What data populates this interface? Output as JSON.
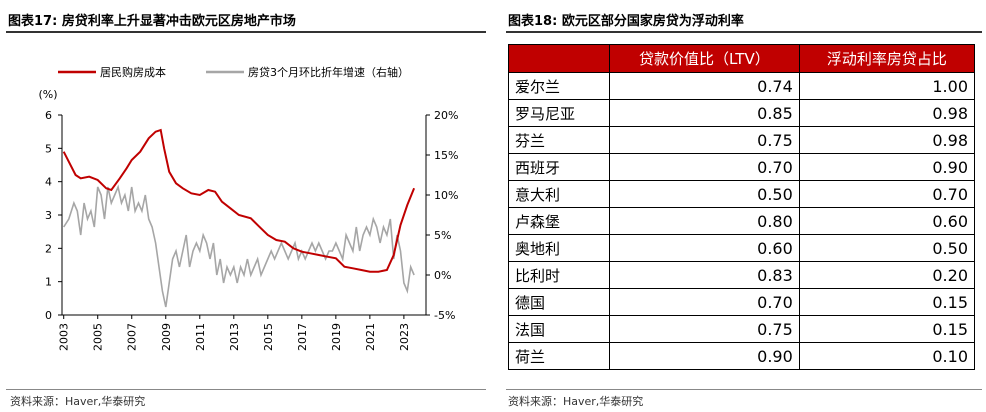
{
  "left": {
    "title": "图表17: 房贷利率上升显著冲击欧元区房地产市场",
    "source": "资料来源：Haver,华泰研究"
  },
  "right": {
    "title": "图表18: 欧元区部分国家房贷为浮动利率",
    "source": "资料来源：Haver,华泰研究"
  },
  "chart_data": [
    {
      "type": "line",
      "y_unit_label": "(%)",
      "legend_position": "top",
      "colors": {
        "series1": "#c00000",
        "series2": "#a6a6a6"
      },
      "x_ticks": [
        "2003",
        "2005",
        "2007",
        "2009",
        "2011",
        "2013",
        "2015",
        "2017",
        "2019",
        "2021",
        "2023"
      ],
      "y_left": {
        "min": 0,
        "max": 6,
        "ticks": [
          "0",
          "1",
          "2",
          "3",
          "4",
          "5",
          "6"
        ]
      },
      "y_right": {
        "min": -5,
        "max": 20,
        "ticks": [
          "-5%",
          "0%",
          "5%",
          "10%",
          "15%",
          "20%"
        ]
      },
      "series": [
        {
          "name": "居民购房成本",
          "axis": "left",
          "points": [
            [
              2003.0,
              4.9
            ],
            [
              2003.3,
              4.6
            ],
            [
              2003.7,
              4.2
            ],
            [
              2004.0,
              4.1
            ],
            [
              2004.5,
              4.15
            ],
            [
              2005.0,
              4.05
            ],
            [
              2005.5,
              3.8
            ],
            [
              2005.8,
              3.75
            ],
            [
              2006.3,
              4.1
            ],
            [
              2006.7,
              4.4
            ],
            [
              2007.0,
              4.65
            ],
            [
              2007.5,
              4.9
            ],
            [
              2008.0,
              5.3
            ],
            [
              2008.4,
              5.5
            ],
            [
              2008.7,
              5.55
            ],
            [
              2008.9,
              5.0
            ],
            [
              2009.2,
              4.3
            ],
            [
              2009.6,
              3.95
            ],
            [
              2010.0,
              3.8
            ],
            [
              2010.5,
              3.65
            ],
            [
              2011.0,
              3.6
            ],
            [
              2011.5,
              3.75
            ],
            [
              2011.9,
              3.7
            ],
            [
              2012.3,
              3.4
            ],
            [
              2012.8,
              3.2
            ],
            [
              2013.3,
              3.0
            ],
            [
              2014.0,
              2.9
            ],
            [
              2014.5,
              2.65
            ],
            [
              2015.0,
              2.4
            ],
            [
              2015.5,
              2.25
            ],
            [
              2016.0,
              2.2
            ],
            [
              2016.5,
              2.0
            ],
            [
              2017.0,
              1.9
            ],
            [
              2017.5,
              1.85
            ],
            [
              2018.0,
              1.8
            ],
            [
              2018.5,
              1.75
            ],
            [
              2019.0,
              1.7
            ],
            [
              2019.5,
              1.45
            ],
            [
              2020.0,
              1.4
            ],
            [
              2020.5,
              1.35
            ],
            [
              2021.0,
              1.3
            ],
            [
              2021.5,
              1.3
            ],
            [
              2022.0,
              1.35
            ],
            [
              2022.4,
              1.8
            ],
            [
              2022.8,
              2.7
            ],
            [
              2023.2,
              3.3
            ],
            [
              2023.6,
              3.8
            ]
          ]
        },
        {
          "name": "房贷3个月环比折年增速（右轴）",
          "axis": "right",
          "points": [
            [
              2003.0,
              6
            ],
            [
              2003.3,
              7
            ],
            [
              2003.6,
              9
            ],
            [
              2003.8,
              8
            ],
            [
              2004.0,
              5
            ],
            [
              2004.2,
              9
            ],
            [
              2004.4,
              7
            ],
            [
              2004.6,
              8
            ],
            [
              2004.8,
              6
            ],
            [
              2005.0,
              11
            ],
            [
              2005.2,
              10
            ],
            [
              2005.4,
              7
            ],
            [
              2005.6,
              11
            ],
            [
              2005.8,
              9
            ],
            [
              2006.0,
              10
            ],
            [
              2006.2,
              11
            ],
            [
              2006.4,
              9
            ],
            [
              2006.6,
              10
            ],
            [
              2006.8,
              8
            ],
            [
              2007.0,
              11
            ],
            [
              2007.2,
              8
            ],
            [
              2007.4,
              9
            ],
            [
              2007.6,
              8
            ],
            [
              2007.8,
              10
            ],
            [
              2008.0,
              7
            ],
            [
              2008.2,
              6
            ],
            [
              2008.4,
              4
            ],
            [
              2008.6,
              1
            ],
            [
              2008.8,
              -2
            ],
            [
              2009.0,
              -4
            ],
            [
              2009.2,
              -1
            ],
            [
              2009.4,
              2
            ],
            [
              2009.6,
              3
            ],
            [
              2009.8,
              1
            ],
            [
              2010.0,
              3
            ],
            [
              2010.2,
              5
            ],
            [
              2010.4,
              1
            ],
            [
              2010.6,
              3
            ],
            [
              2010.8,
              4
            ],
            [
              2011.0,
              3
            ],
            [
              2011.2,
              5
            ],
            [
              2011.4,
              4
            ],
            [
              2011.6,
              2
            ],
            [
              2011.8,
              4
            ],
            [
              2012.0,
              0
            ],
            [
              2012.2,
              2
            ],
            [
              2012.4,
              -1
            ],
            [
              2012.6,
              1
            ],
            [
              2012.8,
              0
            ],
            [
              2013.0,
              1
            ],
            [
              2013.2,
              -1
            ],
            [
              2013.4,
              1
            ],
            [
              2013.6,
              0
            ],
            [
              2013.8,
              2
            ],
            [
              2014.0,
              0
            ],
            [
              2014.2,
              1
            ],
            [
              2014.4,
              2
            ],
            [
              2014.6,
              0
            ],
            [
              2014.8,
              1
            ],
            [
              2015.0,
              2
            ],
            [
              2015.2,
              3
            ],
            [
              2015.4,
              2
            ],
            [
              2015.6,
              3
            ],
            [
              2015.8,
              4
            ],
            [
              2016.0,
              3
            ],
            [
              2016.2,
              2
            ],
            [
              2016.4,
              3
            ],
            [
              2016.6,
              4
            ],
            [
              2016.8,
              2
            ],
            [
              2017.0,
              3
            ],
            [
              2017.2,
              2
            ],
            [
              2017.4,
              3
            ],
            [
              2017.6,
              4
            ],
            [
              2017.8,
              3
            ],
            [
              2018.0,
              4
            ],
            [
              2018.2,
              3
            ],
            [
              2018.4,
              2
            ],
            [
              2018.6,
              3
            ],
            [
              2018.8,
              3
            ],
            [
              2019.0,
              4
            ],
            [
              2019.2,
              3
            ],
            [
              2019.4,
              2
            ],
            [
              2019.6,
              5
            ],
            [
              2019.8,
              4
            ],
            [
              2020.0,
              3
            ],
            [
              2020.2,
              6
            ],
            [
              2020.4,
              3
            ],
            [
              2020.6,
              5
            ],
            [
              2020.8,
              6
            ],
            [
              2021.0,
              5
            ],
            [
              2021.2,
              7
            ],
            [
              2021.4,
              6
            ],
            [
              2021.6,
              4
            ],
            [
              2021.8,
              6
            ],
            [
              2022.0,
              5
            ],
            [
              2022.2,
              7
            ],
            [
              2022.4,
              2
            ],
            [
              2022.6,
              5
            ],
            [
              2022.8,
              3
            ],
            [
              2023.0,
              -1
            ],
            [
              2023.2,
              -2
            ],
            [
              2023.4,
              1
            ],
            [
              2023.6,
              0
            ]
          ]
        }
      ]
    },
    {
      "type": "table",
      "columns": [
        "",
        "贷款价值比（LTV）",
        "浮动利率房贷占比"
      ],
      "header_color": "#c00000",
      "rows": [
        [
          "爱尔兰",
          "0.74",
          "1.00"
        ],
        [
          "罗马尼亚",
          "0.85",
          "0.98"
        ],
        [
          "芬兰",
          "0.75",
          "0.98"
        ],
        [
          "西班牙",
          "0.70",
          "0.90"
        ],
        [
          "意大利",
          "0.50",
          "0.70"
        ],
        [
          "卢森堡",
          "0.80",
          "0.60"
        ],
        [
          "奥地利",
          "0.60",
          "0.50"
        ],
        [
          "比利时",
          "0.83",
          "0.20"
        ],
        [
          "德国",
          "0.70",
          "0.15"
        ],
        [
          "法国",
          "0.75",
          "0.15"
        ],
        [
          "荷兰",
          "0.90",
          "0.10"
        ]
      ]
    }
  ]
}
